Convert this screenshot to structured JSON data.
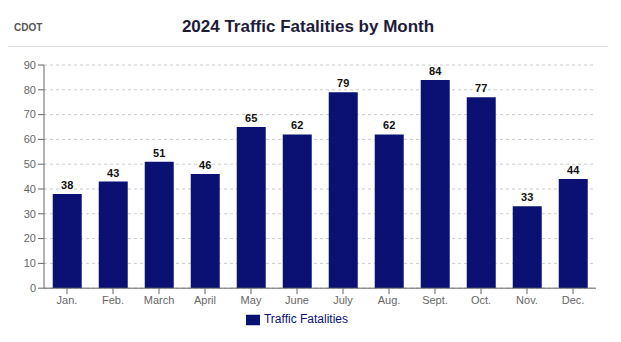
{
  "chart_data": {
    "type": "bar",
    "title": "2024 Traffic Fatalities by Month",
    "annotations": [
      "CDOT"
    ],
    "categories": [
      "Jan.",
      "Feb.",
      "March",
      "April",
      "May",
      "June",
      "July",
      "Aug.",
      "Sept.",
      "Oct.",
      "Nov.",
      "Dec."
    ],
    "series": [
      {
        "name": "Traffic Fatalities",
        "color": "#0a1172",
        "values": [
          38,
          43,
          51,
          46,
          65,
          62,
          79,
          62,
          84,
          77,
          33,
          44
        ]
      }
    ],
    "ylim": [
      0,
      90
    ],
    "yticks": [
      0,
      10,
      20,
      30,
      40,
      50,
      60,
      70,
      80,
      90
    ],
    "grid": true,
    "legend": "bottom",
    "data_labels": true
  }
}
